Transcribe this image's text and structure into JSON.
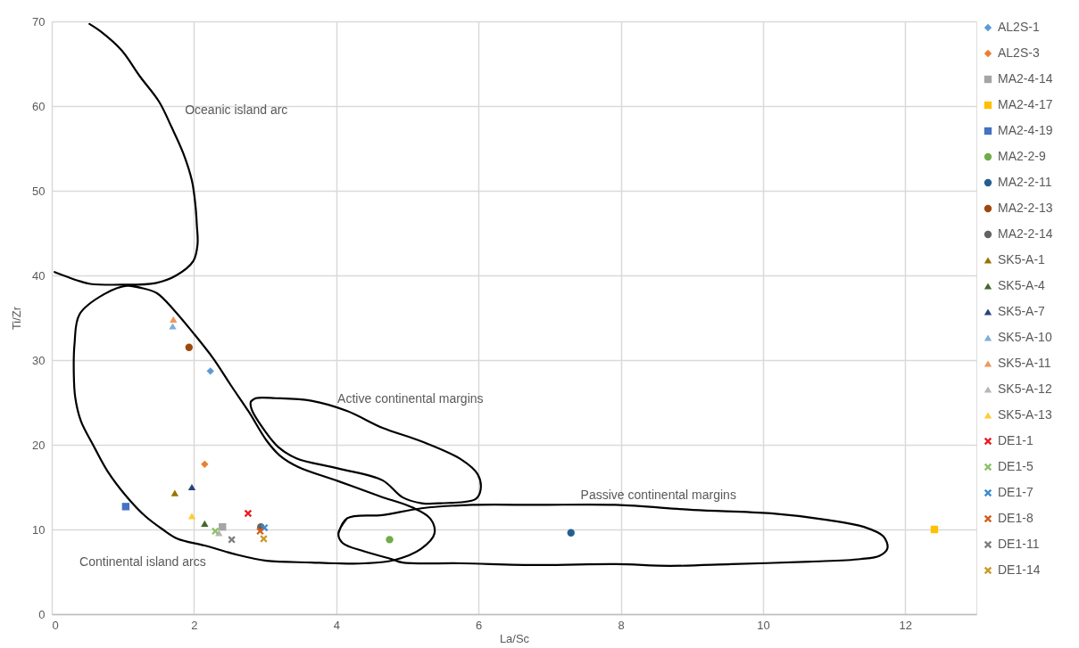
{
  "chart_data": {
    "type": "scatter",
    "xlabel": "La/Sc",
    "ylabel": "Ti/Zr",
    "xlim": [
      0,
      13
    ],
    "ylim": [
      0,
      70
    ],
    "xticks": [
      0,
      2,
      4,
      6,
      8,
      10,
      12
    ],
    "yticks": [
      0,
      10,
      20,
      30,
      40,
      50,
      60,
      70
    ],
    "grid": true,
    "legend": "right",
    "annotations": [
      "Oceanic island arc",
      "Active continental margins",
      "Passive continental margins",
      "Continental island arcs"
    ],
    "series": [
      {
        "type": "line",
        "color": "#000000",
        "line_style": "solid",
        "marker": "none",
        "x": [
          0.53,
          0.69,
          0.98,
          1.24,
          1.51,
          1.68,
          1.85,
          1.97,
          2.02,
          2.04,
          2.05,
          1.99,
          1.75,
          1.46,
          0.98,
          0.54,
          0.4,
          0.04
        ],
        "values": [
          69.7,
          68.8,
          66.6,
          63.5,
          60.5,
          57.6,
          54.4,
          51.2,
          48.3,
          45.9,
          43.7,
          41.7,
          40.0,
          39.1,
          38.9,
          39.0,
          39.3,
          40.4
        ]
      },
      {
        "type": "line",
        "color": "#000000",
        "line_style": "solid",
        "marker": "none",
        "x": [
          1.07,
          1.27,
          1.48,
          1.73,
          1.98,
          2.27,
          2.52,
          2.77,
          3.02,
          3.21,
          3.46,
          4.03,
          4.62,
          5.07,
          5.32,
          5.38,
          5.19,
          4.82,
          4.4,
          3.99,
          3.65,
          3.02,
          2.61,
          2.15,
          1.77,
          1.56,
          1.31,
          1.04,
          0.79,
          0.58,
          0.41,
          0.33,
          0.31,
          0.32,
          0.39,
          0.74,
          1.07,
          1.27
        ],
        "values": [
          38.8,
          38.5,
          37.9,
          35.8,
          33.3,
          30.2,
          27.0,
          23.9,
          20.5,
          18.7,
          17.4,
          15.7,
          13.9,
          12.6,
          11.3,
          9.5,
          7.7,
          6.4,
          6.0,
          6.0,
          6.1,
          6.3,
          7.0,
          8.1,
          8.9,
          10.0,
          11.6,
          14.0,
          16.8,
          20.0,
          22.8,
          25.6,
          28.4,
          31.9,
          35.4,
          37.8,
          38.8,
          38.5
        ]
      },
      {
        "type": "line",
        "color": "#000000",
        "line_style": "solid",
        "marker": "none",
        "x": [
          2.8,
          2.87,
          3.15,
          3.65,
          4.15,
          4.65,
          5.2,
          5.75,
          5.99,
          6.03,
          5.96,
          5.47,
          5.2,
          4.93,
          4.65,
          4.03,
          3.44,
          3.19,
          3.0,
          2.81,
          2.8,
          2.87
        ],
        "values": [
          25.1,
          25.5,
          25.5,
          25.2,
          24.0,
          22.0,
          20.4,
          18.3,
          16.5,
          14.7,
          13.6,
          13.1,
          13.1,
          13.8,
          15.8,
          17.2,
          18.4,
          19.7,
          21.6,
          24.2,
          25.1,
          25.5
        ]
      },
      {
        "type": "line",
        "color": "#000000",
        "line_style": "solid",
        "marker": "none",
        "x": [
          4.03,
          4.15,
          4.65,
          5.2,
          5.91,
          6.84,
          7.93,
          9.02,
          10.11,
          10.93,
          11.42,
          11.69,
          11.75,
          11.64,
          11.37,
          10.66,
          9.56,
          8.69,
          7.93,
          6.84,
          5.75,
          4.93,
          4.78,
          4.4,
          4.09,
          4.03,
          4.15
        ],
        "values": [
          9.5,
          11.3,
          11.7,
          12.5,
          12.9,
          12.9,
          12.9,
          12.3,
          11.9,
          11.1,
          10.3,
          9.2,
          7.8,
          6.9,
          6.5,
          6.2,
          5.9,
          5.7,
          5.9,
          5.8,
          6.0,
          6.1,
          6.5,
          7.4,
          8.4,
          9.5,
          11.3
        ]
      },
      {
        "name": "AL2S-1",
        "color": "#5b9bd5",
        "marker": "diamond",
        "x": [
          2.23
        ],
        "values": [
          28.7
        ]
      },
      {
        "name": "AL2S-3",
        "color": "#ed7d31",
        "marker": "diamond",
        "x": [
          2.15
        ],
        "values": [
          17.7
        ]
      },
      {
        "name": "MA2-4-14",
        "color": "#a5a5a5",
        "marker": "square",
        "x": [
          2.4
        ],
        "values": [
          10.3
        ]
      },
      {
        "name": "MA2-4-17",
        "color": "#ffc000",
        "marker": "square",
        "x": [
          12.41
        ],
        "values": [
          10.0
        ]
      },
      {
        "name": "MA2-4-19",
        "color": "#4472c4",
        "marker": "square",
        "x": [
          1.04
        ],
        "values": [
          12.7
        ]
      },
      {
        "name": "MA2-2-9",
        "color": "#70ad47",
        "marker": "circle",
        "x": [
          4.75
        ],
        "values": [
          8.8
        ]
      },
      {
        "name": "MA2-2-11",
        "color": "#255e91",
        "marker": "circle",
        "x": [
          7.3
        ],
        "values": [
          9.6
        ]
      },
      {
        "name": "MA2-2-13",
        "color": "#9e480e",
        "marker": "circle",
        "x": [
          1.93
        ],
        "values": [
          31.5
        ]
      },
      {
        "name": "MA2-2-14",
        "color": "#636363",
        "marker": "circle",
        "x": [
          2.94
        ],
        "values": [
          10.3
        ]
      },
      {
        "name": "SK5-A-1",
        "color": "#997300",
        "marker": "triangle",
        "x": [
          1.73
        ],
        "values": [
          14.3
        ]
      },
      {
        "name": "SK5-A-4",
        "color": "#43682b",
        "marker": "triangle",
        "x": [
          2.15
        ],
        "values": [
          10.7
        ]
      },
      {
        "name": "SK5-A-7",
        "color": "#264478",
        "marker": "triangle",
        "x": [
          1.97
        ],
        "values": [
          15.0
        ]
      },
      {
        "name": "SK5-A-10",
        "color": "#7cafdd",
        "marker": "triangle",
        "x": [
          1.7
        ],
        "values": [
          34.0
        ]
      },
      {
        "name": "SK5-A-11",
        "color": "#f1975a",
        "marker": "triangle",
        "x": [
          1.71
        ],
        "values": [
          34.8
        ]
      },
      {
        "name": "SK5-A-12",
        "color": "#b7b7b7",
        "marker": "triangle",
        "x": [
          2.35
        ],
        "values": [
          9.6
        ]
      },
      {
        "name": "SK5-A-13",
        "color": "#ffcd33",
        "marker": "triangle",
        "x": [
          1.97
        ],
        "values": [
          11.6
        ]
      },
      {
        "name": "DE1-1",
        "color": "#ee1c25",
        "marker": "cross",
        "x": [
          2.76
        ],
        "values": [
          11.9
        ]
      },
      {
        "name": "DE1-5",
        "color": "#8cc168",
        "marker": "cross",
        "x": [
          2.3
        ],
        "values": [
          9.8
        ]
      },
      {
        "name": "DE1-7",
        "color": "#3a8bd6",
        "marker": "cross",
        "x": [
          2.99
        ],
        "values": [
          10.2
        ]
      },
      {
        "name": "DE1-8",
        "color": "#d35f1c",
        "marker": "cross",
        "x": [
          2.93
        ],
        "values": [
          9.8
        ]
      },
      {
        "name": "DE1-11",
        "color": "#7f7f7f",
        "marker": "cross",
        "x": [
          2.53
        ],
        "values": [
          8.8
        ]
      },
      {
        "name": "DE1-14",
        "color": "#cc9a2a",
        "marker": "cross",
        "x": [
          2.98
        ],
        "values": [
          8.9
        ]
      }
    ]
  }
}
